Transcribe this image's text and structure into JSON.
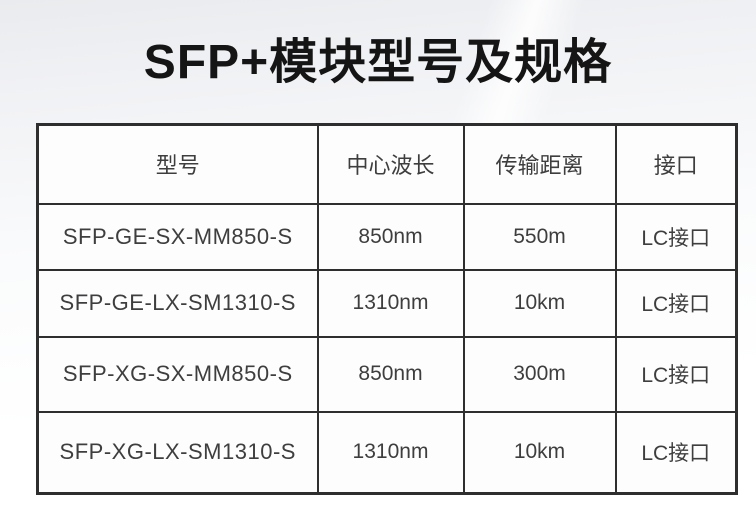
{
  "page": {
    "title": "SFP+模块型号及规格"
  },
  "table": {
    "headers": [
      "型号",
      "中心波长",
      "传输距离",
      "接口"
    ],
    "rows": [
      [
        "SFP-GE-SX-MM850-S",
        "850nm",
        "550m",
        "LC接口"
      ],
      [
        "SFP-GE-LX-SM1310-S",
        "1310nm",
        "10km",
        "LC接口"
      ],
      [
        "SFP-XG-SX-MM850-S",
        "850nm",
        "300m",
        "LC接口"
      ],
      [
        "SFP-XG-LX-SM1310-S",
        "1310nm",
        "10km",
        "LC接口"
      ]
    ]
  },
  "colors": {
    "title_text": "#151515",
    "table_border": "#2e2e2e",
    "cell_text": "#404040",
    "cell_background": "#fdfdfe",
    "page_background_top": "#e9ebee",
    "page_background_bottom": "#ffffff"
  }
}
